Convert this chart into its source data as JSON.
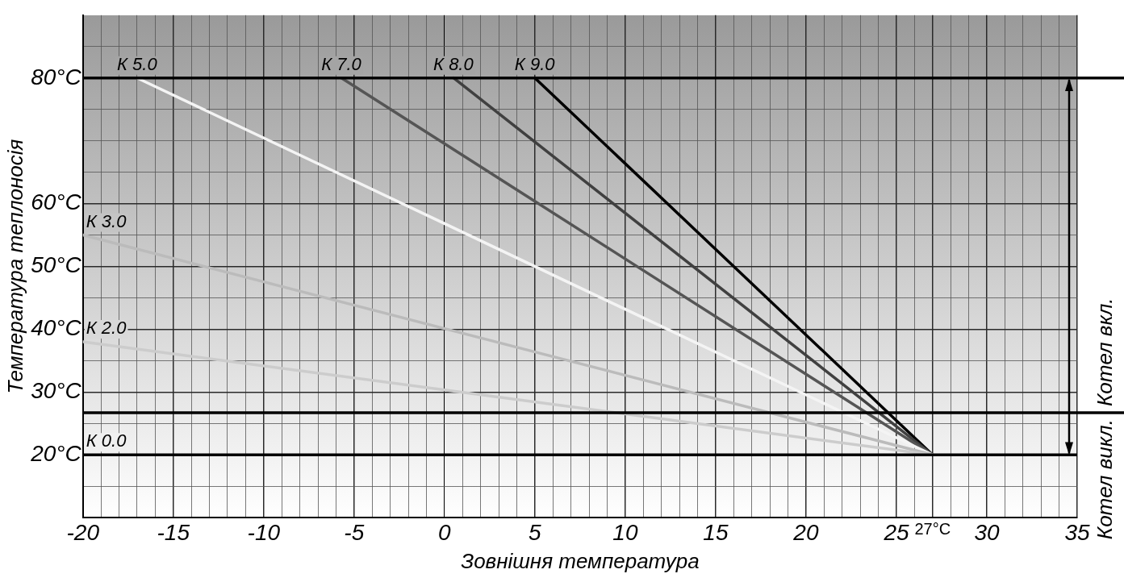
{
  "chart_data": {
    "type": "line",
    "xlabel": "Зовнішня температура",
    "ylabel": "Температура теплоносія",
    "series": [
      {
        "name": "К 0.0",
        "color": "#000000",
        "x": [
          -20,
          35
        ],
        "values": [
          20,
          20
        ]
      },
      {
        "name": "К 2.0",
        "color": "#cccccc",
        "x": [
          -20,
          27
        ],
        "values": [
          38,
          20
        ]
      },
      {
        "name": "К 3.0",
        "color": "#bbbbbb",
        "x": [
          -20,
          27
        ],
        "values": [
          55,
          20
        ]
      },
      {
        "name": "К 5.0",
        "color": "#f4f4f4",
        "x": [
          -17,
          27
        ],
        "values": [
          80,
          20
        ]
      },
      {
        "name": "К 7.0",
        "color": "#555555",
        "x": [
          -5.7,
          27
        ],
        "values": [
          80,
          20
        ]
      },
      {
        "name": "К 8.0",
        "color": "#404040",
        "x": [
          0.5,
          27
        ],
        "values": [
          80,
          20
        ]
      },
      {
        "name": "К 9.0",
        "color": "#000000",
        "x": [
          5,
          27
        ],
        "values": [
          80,
          20
        ]
      }
    ],
    "xlim": [
      -20,
      35
    ],
    "xticks": [
      -20,
      {
        "value": -19,
        "label": null
      },
      {
        "value": -18,
        "label": null
      },
      {
        "value": -17,
        "label": null
      },
      {
        "value": -16,
        "label": null
      },
      -15,
      {
        "value": -14,
        "label": null
      },
      {
        "value": -13,
        "label": null
      },
      {
        "value": -12,
        "label": null
      },
      {
        "value": -11,
        "label": null
      },
      -10,
      {
        "value": -9,
        "label": null
      },
      {
        "value": -8,
        "label": null
      },
      {
        "value": -7,
        "label": null
      },
      {
        "value": -6,
        "label": null
      },
      -5,
      {
        "value": -4,
        "label": null
      },
      {
        "value": -3,
        "label": null
      },
      {
        "value": -2,
        "label": null
      },
      {
        "value": -1,
        "label": null
      },
      0,
      {
        "value": 1,
        "label": null
      },
      {
        "value": 2,
        "label": null
      },
      {
        "value": 3,
        "label": null
      },
      {
        "value": 4,
        "label": null
      },
      5,
      {
        "value": 6,
        "label": null
      },
      {
        "value": 7,
        "label": null
      },
      {
        "value": 8,
        "label": null
      },
      {
        "value": 9,
        "label": null
      },
      10,
      {
        "value": 11,
        "label": null
      },
      {
        "value": 12,
        "label": null
      },
      {
        "value": 13,
        "label": null
      },
      {
        "value": 14,
        "label": null
      },
      15,
      {
        "value": 16,
        "label": null
      },
      {
        "value": 17,
        "label": null
      },
      {
        "value": 18,
        "label": null
      },
      {
        "value": 19,
        "label": null
      },
      20,
      {
        "value": 21,
        "label": null
      },
      {
        "value": 22,
        "label": null
      },
      {
        "value": 23,
        "label": null
      },
      {
        "value": 24,
        "label": null
      },
      25,
      {
        "value": 26,
        "label": null
      },
      {
        "value": 27,
        "label": "27°C"
      },
      {
        "value": 28,
        "label": null
      },
      {
        "value": 29,
        "label": null
      },
      30,
      {
        "value": 31,
        "label": null
      },
      {
        "value": 32,
        "label": null
      },
      {
        "value": 33,
        "label": null
      },
      {
        "value": 34,
        "label": null
      },
      35
    ],
    "ylim": [
      10,
      90
    ],
    "yticks": [
      {
        "value": 15,
        "label": null
      },
      {
        "value": 20,
        "label": "20°C"
      },
      {
        "value": 25,
        "label": null
      },
      {
        "value": 30,
        "label": "30°C"
      },
      {
        "value": 35,
        "label": null
      },
      {
        "value": 40,
        "label": "40°C"
      },
      {
        "value": 45,
        "label": null
      },
      {
        "value": 50,
        "label": "50°C"
      },
      {
        "value": 55,
        "label": null
      },
      {
        "value": 60,
        "label": "60°C"
      },
      {
        "value": 65,
        "label": null
      },
      {
        "value": 70,
        "label": null
      },
      {
        "value": 75,
        "label": null
      },
      {
        "value": 80,
        "label": "80°C"
      },
      {
        "value": 85,
        "label": null
      }
    ],
    "ref_lines": [
      {
        "axis": "y",
        "value": 80,
        "color": "#000000"
      },
      {
        "axis": "y",
        "value": 26.7,
        "color": "#000000"
      }
    ],
    "annotations": [
      {
        "text": "Котел викл.",
        "y": 26.7
      },
      {
        "text": "Котел вкл.",
        "y": 26.7
      }
    ],
    "grid": true,
    "legend": false,
    "marker": "none",
    "line_style": "solid"
  }
}
